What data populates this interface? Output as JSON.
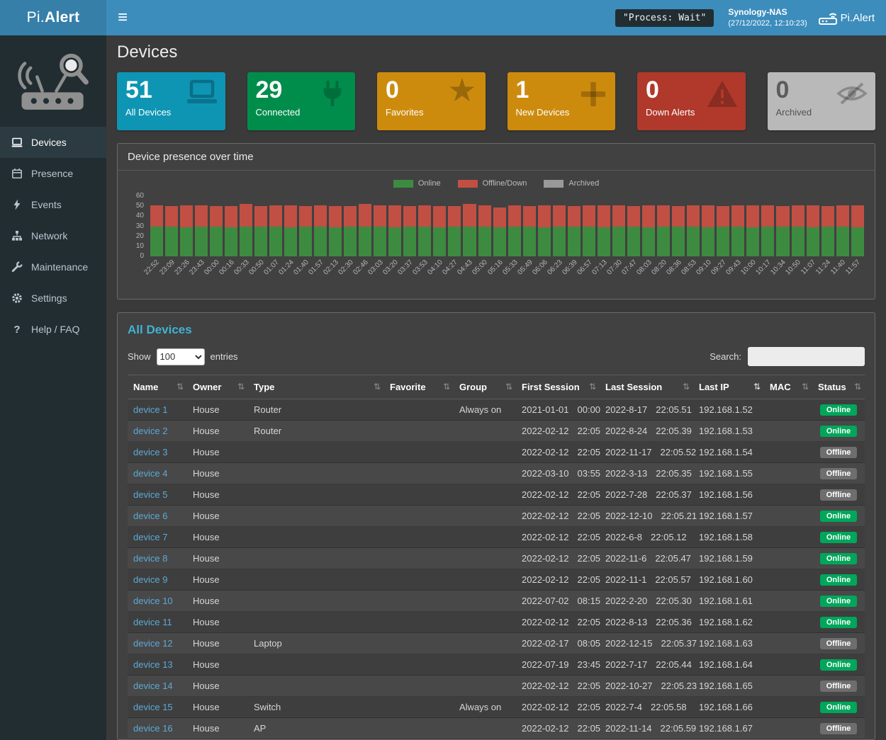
{
  "colors": {
    "topbar": "#3c8dbc",
    "brand_bg": "#367fa9",
    "sidebar": "#222d32",
    "online_badge": "#00a65a",
    "offline_badge": "#6e6e6e",
    "link": "#5da9d6",
    "panel_title": "#3fb3d4"
  },
  "icons": {
    "hamburger_glyph": "≡",
    "star_glyph": "★",
    "sort_glyph": "⇅",
    "question_glyph": "?"
  },
  "topbar": {
    "brand_prefix": "Pi.",
    "brand_suffix": "Alert",
    "process_status": "\"Process: Wait\"",
    "nas_name": "Synology-NAS",
    "nas_datetime": "(27/12/2022, 12:10:23)",
    "app_name": "Pi.Alert"
  },
  "sidebar": {
    "items": [
      {
        "label": "Devices",
        "active": true
      },
      {
        "label": "Presence",
        "active": false
      },
      {
        "label": "Events",
        "active": false
      },
      {
        "label": "Network",
        "active": false
      },
      {
        "label": "Maintenance",
        "active": false
      },
      {
        "label": "Settings",
        "active": false
      },
      {
        "label": "Help / FAQ",
        "active": false
      }
    ]
  },
  "page": {
    "title": "Devices"
  },
  "cards": [
    {
      "value": "51",
      "label": "All Devices",
      "color": "#0e95b4"
    },
    {
      "value": "29",
      "label": "Connected",
      "color": "#008d4c"
    },
    {
      "value": "0",
      "label": "Favorites",
      "color": "#cd8b0e"
    },
    {
      "value": "1",
      "label": "New Devices",
      "color": "#cd8b0e"
    },
    {
      "value": "0",
      "label": "Down Alerts",
      "color": "#b0392b"
    },
    {
      "value": "0",
      "label": "Archived",
      "color": "#b9b9b9"
    }
  ],
  "chart_panel": {
    "title": "Device presence over time"
  },
  "chart_data": {
    "type": "bar",
    "stacked": true,
    "title": "Device presence over time",
    "legend_position": "top",
    "ylim": [
      0,
      60
    ],
    "yticks": [
      0,
      10,
      20,
      30,
      40,
      50,
      60
    ],
    "categories": [
      "22:52",
      "23:09",
      "23:26",
      "23:43",
      "00:00",
      "00:16",
      "00:33",
      "00:50",
      "01:07",
      "01:24",
      "01:40",
      "01:57",
      "02:13",
      "02:30",
      "02:46",
      "03:03",
      "03:20",
      "03:37",
      "03:53",
      "04:10",
      "04:27",
      "04:43",
      "05:00",
      "05:16",
      "05:33",
      "05:49",
      "06:06",
      "06:23",
      "06:39",
      "06:57",
      "07:13",
      "07:30",
      "07:47",
      "08:03",
      "08:20",
      "08:36",
      "08:53",
      "09:10",
      "09:27",
      "09:43",
      "10:00",
      "10:17",
      "10:34",
      "10:50",
      "11:07",
      "11:24",
      "11:40",
      "11:57"
    ],
    "series": [
      {
        "name": "Online",
        "color": "#3d8b40",
        "values": [
          30,
          30,
          29,
          30,
          30,
          29,
          30,
          30,
          30,
          29,
          30,
          30,
          29,
          30,
          30,
          30,
          29,
          30,
          30,
          29,
          30,
          30,
          30,
          29,
          30,
          30,
          29,
          30,
          30,
          30,
          29,
          30,
          30,
          29,
          30,
          30,
          30,
          29,
          30,
          30,
          29,
          30,
          30,
          30,
          29,
          30,
          30,
          29
        ]
      },
      {
        "name": "Offline/Down",
        "color": "#c14f44",
        "values": [
          21,
          20,
          22,
          21,
          20,
          21,
          22,
          20,
          21,
          22,
          20,
          21,
          21,
          20,
          22,
          21,
          22,
          20,
          21,
          21,
          20,
          22,
          21,
          20,
          21,
          20,
          22,
          21,
          20,
          21,
          22,
          21,
          20,
          22,
          21,
          20,
          21,
          22,
          20,
          21,
          22,
          21,
          20,
          21,
          22,
          20,
          21,
          22
        ]
      },
      {
        "name": "Archived",
        "color": "#999999",
        "values": [
          0,
          0,
          0,
          0,
          0,
          0,
          0,
          0,
          0,
          0,
          0,
          0,
          0,
          0,
          0,
          0,
          0,
          0,
          0,
          0,
          0,
          0,
          0,
          0,
          0,
          0,
          0,
          0,
          0,
          0,
          0,
          0,
          0,
          0,
          0,
          0,
          0,
          0,
          0,
          0,
          0,
          0,
          0,
          0,
          0,
          0,
          0,
          0
        ]
      }
    ]
  },
  "table_panel": {
    "title": "All Devices",
    "show_label": "Show",
    "entries_label": "entries",
    "entries_value": "100",
    "search_label": "Search:",
    "search_value": "",
    "columns": [
      {
        "label": "Name"
      },
      {
        "label": "Owner"
      },
      {
        "label": "Type"
      },
      {
        "label": "Favorite"
      },
      {
        "label": "Group"
      },
      {
        "label": "First Session"
      },
      {
        "label": "Last Session"
      },
      {
        "label": "Last IP",
        "sorted": true
      },
      {
        "label": "MAC"
      },
      {
        "label": "Status"
      }
    ],
    "rows": [
      {
        "name": "device 1",
        "owner": "House",
        "type": "Router",
        "favorite": "",
        "group": "Always on",
        "fs_date": "2021-01-01",
        "fs_time": "00:00",
        "ls_date": "2022-8-17",
        "ls_time": "22:05.51",
        "ip": "192.168.1.52",
        "mac": "",
        "status": "Online"
      },
      {
        "name": "device 2",
        "owner": "House",
        "type": "Router",
        "favorite": "",
        "group": "",
        "fs_date": "2022-02-12",
        "fs_time": "22:05",
        "ls_date": "2022-8-24",
        "ls_time": "22:05.39",
        "ip": "192.168.1.53",
        "mac": "",
        "status": "Online"
      },
      {
        "name": "device 3",
        "owner": "House",
        "type": "",
        "favorite": "",
        "group": "",
        "fs_date": "2022-02-12",
        "fs_time": "22:05",
        "ls_date": "2022-11-17",
        "ls_time": "22:05.52",
        "ip": "192.168.1.54",
        "mac": "",
        "status": "Offline"
      },
      {
        "name": "device 4",
        "owner": "House",
        "type": "",
        "favorite": "",
        "group": "",
        "fs_date": "2022-03-10",
        "fs_time": "03:55",
        "ls_date": "2022-3-13",
        "ls_time": "22:05.35",
        "ip": "192.168.1.55",
        "mac": "",
        "status": "Offline"
      },
      {
        "name": "device 5",
        "owner": "House",
        "type": "",
        "favorite": "",
        "group": "",
        "fs_date": "2022-02-12",
        "fs_time": "22:05",
        "ls_date": "2022-7-28",
        "ls_time": "22:05.37",
        "ip": "192.168.1.56",
        "mac": "",
        "status": "Offline"
      },
      {
        "name": "device 6",
        "owner": "House",
        "type": "",
        "favorite": "",
        "group": "",
        "fs_date": "2022-02-12",
        "fs_time": "22:05",
        "ls_date": "2022-12-10",
        "ls_time": "22:05.21",
        "ip": "192.168.1.57",
        "mac": "",
        "status": "Online"
      },
      {
        "name": "device 7",
        "owner": "House",
        "type": "",
        "favorite": "",
        "group": "",
        "fs_date": "2022-02-12",
        "fs_time": "22:05",
        "ls_date": "2022-6-8",
        "ls_time": "22:05.12",
        "ip": "192.168.1.58",
        "mac": "",
        "status": "Online"
      },
      {
        "name": "device 8",
        "owner": "House",
        "type": "",
        "favorite": "",
        "group": "",
        "fs_date": "2022-02-12",
        "fs_time": "22:05",
        "ls_date": "2022-11-6",
        "ls_time": "22:05.47",
        "ip": "192.168.1.59",
        "mac": "",
        "status": "Online"
      },
      {
        "name": "device 9",
        "owner": "House",
        "type": "",
        "favorite": "",
        "group": "",
        "fs_date": "2022-02-12",
        "fs_time": "22:05",
        "ls_date": "2022-11-1",
        "ls_time": "22:05.57",
        "ip": "192.168.1.60",
        "mac": "",
        "status": "Online"
      },
      {
        "name": "device 10",
        "owner": "House",
        "type": "",
        "favorite": "",
        "group": "",
        "fs_date": "2022-07-02",
        "fs_time": "08:15",
        "ls_date": "2022-2-20",
        "ls_time": "22:05.30",
        "ip": "192.168.1.61",
        "mac": "",
        "status": "Online"
      },
      {
        "name": "device 11",
        "owner": "House",
        "type": "",
        "favorite": "",
        "group": "",
        "fs_date": "2022-02-12",
        "fs_time": "22:05",
        "ls_date": "2022-8-13",
        "ls_time": "22:05.36",
        "ip": "192.168.1.62",
        "mac": "",
        "status": "Online"
      },
      {
        "name": "device 12",
        "owner": "House",
        "type": "Laptop",
        "favorite": "",
        "group": "",
        "fs_date": "2022-02-17",
        "fs_time": "08:05",
        "ls_date": "2022-12-15",
        "ls_time": "22:05.37",
        "ip": "192.168.1.63",
        "mac": "",
        "status": "Offline"
      },
      {
        "name": "device 13",
        "owner": "House",
        "type": "",
        "favorite": "",
        "group": "",
        "fs_date": "2022-07-19",
        "fs_time": "23:45",
        "ls_date": "2022-7-17",
        "ls_time": "22:05.44",
        "ip": "192.168.1.64",
        "mac": "",
        "status": "Online"
      },
      {
        "name": "device 14",
        "owner": "House",
        "type": "",
        "favorite": "",
        "group": "",
        "fs_date": "2022-02-12",
        "fs_time": "22:05",
        "ls_date": "2022-10-27",
        "ls_time": "22:05.23",
        "ip": "192.168.1.65",
        "mac": "",
        "status": "Offline"
      },
      {
        "name": "device 15",
        "owner": "House",
        "type": "Switch",
        "favorite": "",
        "group": "Always on",
        "fs_date": "2022-02-12",
        "fs_time": "22:05",
        "ls_date": "2022-7-4",
        "ls_time": "22:05.58",
        "ip": "192.168.1.66",
        "mac": "",
        "status": "Online"
      },
      {
        "name": "device 16",
        "owner": "House",
        "type": "AP",
        "favorite": "",
        "group": "",
        "fs_date": "2022-02-12",
        "fs_time": "22:05",
        "ls_date": "2022-11-14",
        "ls_time": "22:05.59",
        "ip": "192.168.1.67",
        "mac": "",
        "status": "Offline"
      }
    ]
  }
}
